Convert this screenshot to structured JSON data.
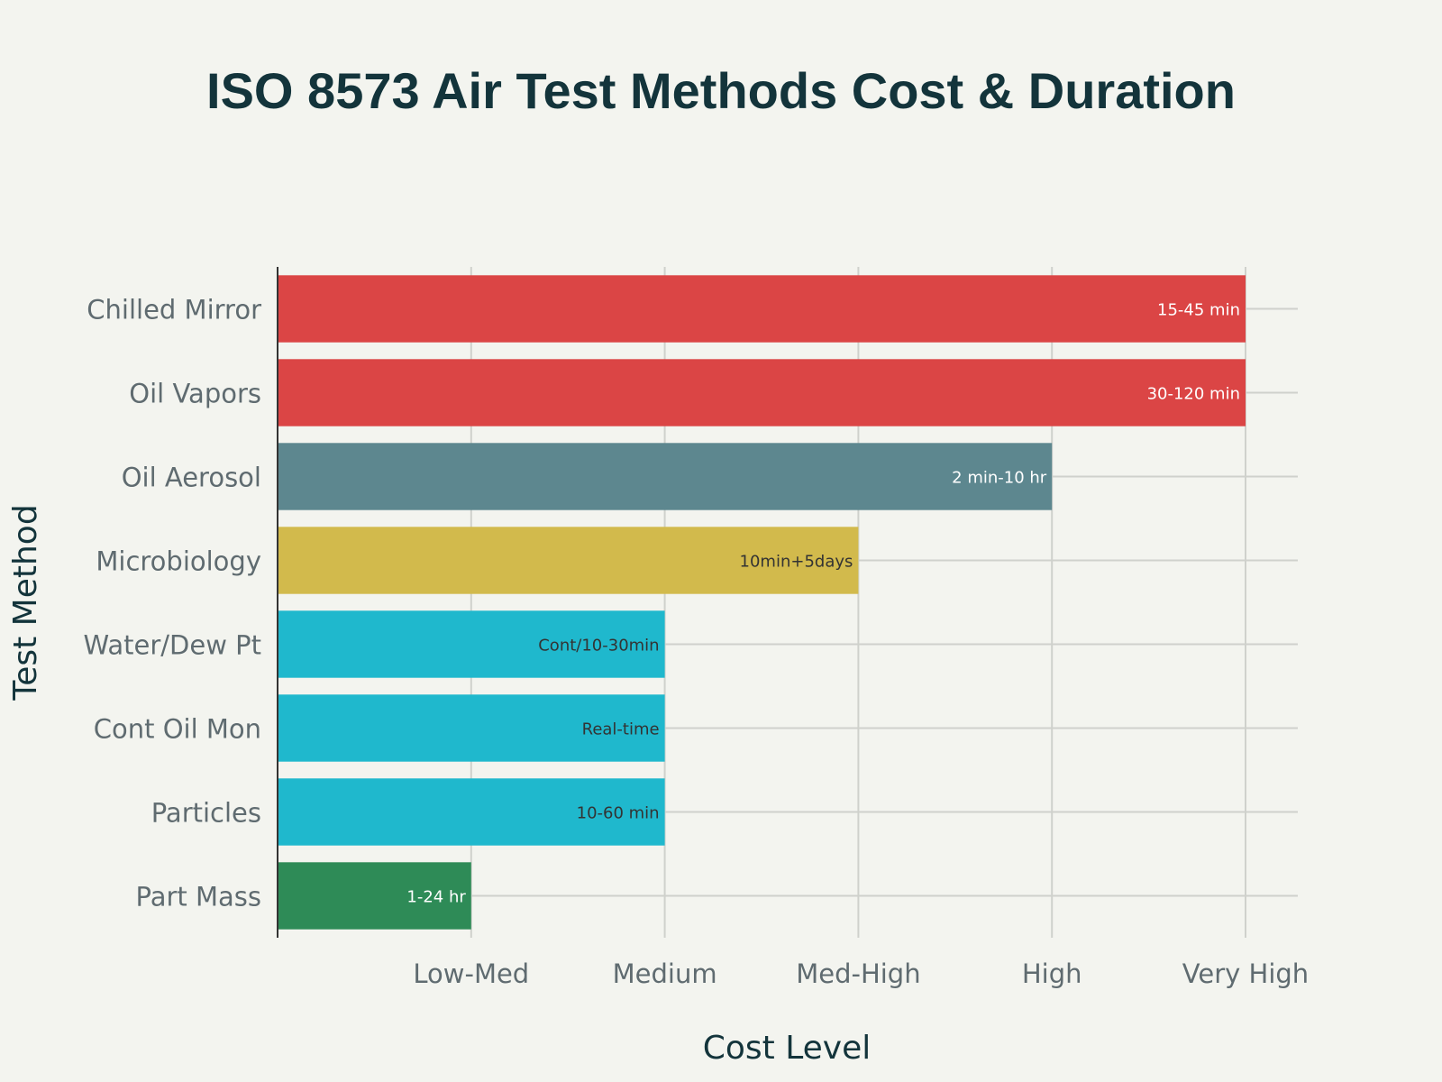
{
  "chart_data": {
    "type": "bar",
    "orientation": "horizontal",
    "title": "ISO 8573 Air Test Methods Cost & Duration",
    "xlabel": "Cost Level",
    "ylabel": "Test Method",
    "x_tick_labels": [
      "Low-Med",
      "Medium",
      "Med-High",
      "High",
      "Very High"
    ],
    "x_tick_values": [
      2,
      3,
      4,
      5,
      6
    ],
    "xlim": [
      1,
      6.27
    ],
    "grid": true,
    "categories": [
      "Chilled Mirror",
      "Oil Vapors",
      "Oil Aerosol",
      "Microbiology",
      "Water/Dew Pt",
      "Cont Oil Mon",
      "Particles",
      "Part Mass"
    ],
    "values": [
      6,
      6,
      5,
      4,
      3,
      3,
      3,
      2
    ],
    "bar_labels": [
      "15-45 min",
      "30-120 min",
      "2 min-10 hr",
      "10min+5days",
      "Cont/10-30min",
      "Real-time",
      "10-60 min",
      "1-24 hr"
    ],
    "colors": [
      "#db4545",
      "#db4545",
      "#5d878f",
      "#d2ba4c",
      "#1fb8cd",
      "#1fb8cd",
      "#1fb8cd",
      "#2e8b57"
    ],
    "label_colors": [
      "#ffffff",
      "#ffffff",
      "#ffffff",
      "#333333",
      "#333333",
      "#333333",
      "#333333",
      "#ffffff"
    ]
  }
}
